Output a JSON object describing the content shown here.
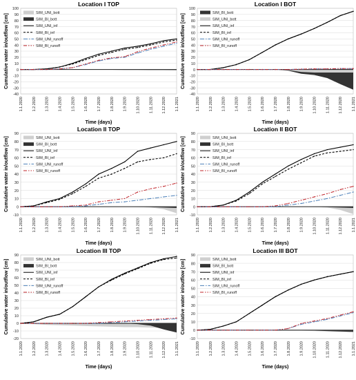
{
  "figure": {
    "y_axis_label": "Cumulative water in/outflow [cm]",
    "x_axis_label": "Time (days)",
    "series_colors": {
      "SIM_UNI_bott": "#cfcfcf",
      "SIM_BI_bott": "#333333",
      "SIM_UNI_inf": "#000000",
      "SIM_BI_inf": "#000000",
      "SIM_UNI_runoff": "#4a7fb8",
      "SIM_BI_runoff": "#c0242a"
    }
  },
  "chart_data": [
    {
      "type": "area",
      "title": "Location I TOP",
      "xlabel": "Time (days)",
      "ylabel": "Cumulative water in/outflow [cm]",
      "categories": [
        "1.1.2020",
        "1.2.2020",
        "1.3.2020",
        "1.4.2020",
        "1.5.2020",
        "1.6.2020",
        "1.7.2020",
        "1.8.2020",
        "1.9.2020",
        "1.10.2020",
        "1.11.2020",
        "1.12.2020",
        "1.1.2021"
      ],
      "ylim": [
        -40,
        100
      ],
      "yticks": [
        -40,
        -30,
        -20,
        -10,
        0,
        10,
        20,
        30,
        40,
        50,
        60,
        70,
        80,
        90,
        100
      ],
      "legend_position": "top-left",
      "series": [
        {
          "name": "SIM_UNI_bott",
          "values": [
            0,
            0,
            0,
            -0.2,
            -0.3,
            -0.4,
            -0.5,
            -0.5,
            -0.6,
            -0.6,
            -0.7,
            -0.8,
            -0.9
          ]
        },
        {
          "name": "SIM_BI_bott",
          "values": [
            0,
            0,
            0,
            -0.2,
            -0.3,
            -0.4,
            -0.5,
            -0.5,
            -0.6,
            -0.6,
            -0.7,
            -0.8,
            -0.9
          ]
        },
        {
          "name": "SIM_UNI_inf",
          "values": [
            0,
            0,
            1,
            4,
            10,
            18,
            25,
            30,
            35,
            38,
            42,
            47,
            50
          ]
        },
        {
          "name": "SIM_BI_inf",
          "values": [
            0,
            0,
            1,
            4,
            9,
            16,
            23,
            28,
            33,
            36,
            40,
            45,
            48
          ]
        },
        {
          "name": "SIM_UNI_runoff",
          "values": [
            0,
            0,
            0,
            1,
            3,
            8,
            14,
            18,
            20,
            27,
            33,
            38,
            43
          ]
        },
        {
          "name": "SIM_BI_runoff",
          "values": [
            0,
            0,
            0,
            1,
            3,
            9,
            15,
            19,
            21,
            29,
            35,
            40,
            45
          ]
        }
      ]
    },
    {
      "type": "area",
      "title": "Location I BOT",
      "xlabel": "Time (days)",
      "ylabel": "Cumulative water in/outflow [cm]",
      "categories": [
        "1.1.2020",
        "1.2.2020",
        "1.3.2020",
        "1.4.2020",
        "1.5.2020",
        "1.6.2020",
        "1.7.2020",
        "1.8.2020",
        "1.9.2020",
        "1.10.2020",
        "1.11.2020",
        "1.12.2020",
        "1.1.2021"
      ],
      "ylim": [
        -40,
        100
      ],
      "yticks": [
        -40,
        -30,
        -20,
        -10,
        0,
        10,
        20,
        30,
        40,
        50,
        60,
        70,
        80,
        90,
        100
      ],
      "legend_position": "top-left",
      "series": [
        {
          "name": "SIM_BI_bott",
          "values": [
            0,
            0,
            0,
            0,
            0,
            0,
            0,
            -2,
            -7,
            -9,
            -14,
            -24,
            -33
          ]
        },
        {
          "name": "SIM_UNI_bott",
          "values": [
            0,
            0,
            0,
            0,
            0,
            0,
            0,
            -1,
            -4,
            -5,
            -5,
            -5,
            -5
          ]
        },
        {
          "name": "SIM_UNI_inf",
          "values": [
            0,
            0,
            3,
            8,
            16,
            28,
            40,
            50,
            58,
            67,
            77,
            88,
            95
          ]
        },
        {
          "name": "SIM_BI_inf",
          "values": [
            0,
            0,
            3,
            8,
            16,
            28,
            40,
            50,
            58,
            67,
            77,
            88,
            95
          ]
        },
        {
          "name": "SIM_UNI_runoff",
          "values": [
            0,
            0,
            0,
            0,
            0,
            0,
            0,
            0,
            0.5,
            1,
            1,
            1.5,
            1.5
          ]
        },
        {
          "name": "SIM_BI_runoff",
          "values": [
            0,
            0,
            0,
            0,
            0,
            0,
            0,
            0,
            0.5,
            1,
            1,
            1.5,
            1.5
          ]
        }
      ]
    },
    {
      "type": "area",
      "title": "Location II TOP",
      "xlabel": "Time (days)",
      "ylabel": "Cumulative water in/outflow [cm]",
      "categories": [
        "1.1.2020",
        "1.2.2020",
        "1.3.2020",
        "1.4.2020",
        "1.5.2020",
        "1.6.2020",
        "1.7.2020",
        "1.8.2020",
        "1.9.2020",
        "1.10.2020",
        "1.11.2020",
        "1.12.2020",
        "1.1.2021"
      ],
      "ylim": [
        -10,
        90
      ],
      "yticks": [
        -10,
        0,
        10,
        20,
        30,
        40,
        50,
        60,
        70,
        80,
        90
      ],
      "legend_position": "top-left",
      "series": [
        {
          "name": "SIM_UNI_bott",
          "values": [
            0,
            0,
            0,
            0,
            0,
            0,
            0,
            0,
            0,
            -0.5,
            -1,
            -3,
            -8
          ]
        },
        {
          "name": "SIM_BI_bott",
          "values": [
            0,
            0,
            0,
            0,
            0,
            0,
            0,
            0,
            0,
            0,
            -0.5,
            -1,
            -1.5
          ]
        },
        {
          "name": "SIM_UNI_inf",
          "values": [
            0,
            1,
            6,
            10,
            18,
            28,
            40,
            47,
            55,
            68,
            72,
            76,
            80
          ]
        },
        {
          "name": "SIM_BI_inf",
          "values": [
            0,
            1,
            5,
            9,
            16,
            25,
            35,
            40,
            47,
            55,
            58,
            60,
            65
          ]
        },
        {
          "name": "SIM_UNI_runoff",
          "values": [
            0,
            0,
            0,
            0,
            0,
            1,
            3,
            5,
            6,
            8,
            10,
            12,
            14
          ]
        },
        {
          "name": "SIM_BI_runoff",
          "values": [
            0,
            0,
            0,
            0,
            1,
            2,
            6,
            8,
            10,
            18,
            22,
            25,
            29
          ]
        }
      ]
    },
    {
      "type": "area",
      "title": "Location II BOT",
      "xlabel": "Time (days)",
      "ylabel": "Cumulative water in/outflow [cm]",
      "categories": [
        "1.1.2020",
        "1.2.2020",
        "1.3.2020",
        "1.4.2020",
        "1.5.2020",
        "1.6.2020",
        "1.7.2020",
        "1.8.2020",
        "1.9.2020",
        "1.10.2020",
        "1.11.2020",
        "1.12.2020",
        "1.1.2021"
      ],
      "ylim": [
        -10,
        90
      ],
      "yticks": [
        -10,
        0,
        10,
        20,
        30,
        40,
        50,
        60,
        70,
        80,
        90
      ],
      "legend_position": "top-left",
      "series": [
        {
          "name": "SIM_UNI_bott",
          "values": [
            0,
            0,
            0,
            0,
            0,
            0,
            0,
            0,
            0,
            -0.5,
            -1,
            -4,
            -9
          ]
        },
        {
          "name": "SIM_BI_bott",
          "values": [
            0,
            0,
            0,
            0,
            0,
            0,
            0,
            0,
            0,
            0,
            -0.5,
            -1,
            -1.5
          ]
        },
        {
          "name": "SIM_UNI_inf",
          "values": [
            0,
            0,
            2,
            8,
            18,
            30,
            40,
            50,
            58,
            65,
            70,
            73,
            76
          ]
        },
        {
          "name": "SIM_BI_inf",
          "values": [
            0,
            0,
            2,
            7,
            16,
            28,
            37,
            46,
            54,
            62,
            66,
            68,
            70
          ]
        },
        {
          "name": "SIM_UNI_runoff",
          "values": [
            0,
            0,
            0,
            0,
            0,
            0,
            0,
            2,
            4,
            7,
            10,
            14,
            18
          ]
        },
        {
          "name": "SIM_BI_runoff",
          "values": [
            0,
            0,
            0,
            0,
            0,
            0,
            1,
            4,
            8,
            12,
            16,
            21,
            25
          ]
        }
      ]
    },
    {
      "type": "area",
      "title": "Location III TOP",
      "xlabel": "Time (days)",
      "ylabel": "Cumulative water in/outflow [cm]",
      "categories": [
        "1.1.2020",
        "1.2.2020",
        "1.3.2020",
        "1.4.2020",
        "1.5.2020",
        "1.6.2020",
        "1.7.2020",
        "1.8.2020",
        "1.9.2020",
        "1.10.2020",
        "1.11.2020",
        "1.12.2020",
        "1.1.2021"
      ],
      "ylim": [
        -20,
        90
      ],
      "yticks": [
        -20,
        -10,
        0,
        10,
        20,
        30,
        40,
        50,
        60,
        70,
        80,
        90
      ],
      "legend_position": "top-left",
      "series": [
        {
          "name": "SIM_UNI_bott",
          "values": [
            0,
            -1,
            -2,
            -2.5,
            -3,
            -3.5,
            -4,
            -4.5,
            -5,
            -5,
            -5.5,
            -6,
            -6
          ]
        },
        {
          "name": "SIM_BI_bott",
          "values": [
            0,
            0,
            0,
            0,
            0,
            0,
            0,
            0,
            0,
            -1,
            -3,
            -8,
            -12
          ]
        },
        {
          "name": "SIM_UNI_inf",
          "values": [
            0,
            2,
            8,
            12,
            22,
            35,
            48,
            58,
            66,
            73,
            80,
            85,
            88
          ]
        },
        {
          "name": "SIM_BI_inf",
          "values": [
            0,
            2,
            8,
            12,
            22,
            35,
            48,
            57,
            65,
            72,
            79,
            84,
            86
          ]
        },
        {
          "name": "SIM_UNI_runoff",
          "values": [
            0,
            0,
            0,
            0,
            0,
            0,
            0,
            1,
            2,
            3,
            4,
            5,
            6
          ]
        },
        {
          "name": "SIM_BI_runoff",
          "values": [
            0,
            0,
            0,
            0,
            0,
            0,
            1,
            2,
            3,
            4,
            5,
            6,
            7
          ]
        }
      ]
    },
    {
      "type": "area",
      "title": "Location III BOT",
      "xlabel": "Time (days)",
      "ylabel": "Cumulative water in/outflow [cm]",
      "categories": [
        "1.1.2020",
        "1.2.2020",
        "1.3.2020",
        "1.4.2020",
        "1.5.2020",
        "1.6.2020",
        "1.7.2020",
        "1.8.2020",
        "1.9.2020",
        "1.10.2020",
        "1.11.2020",
        "1.12.2020",
        "1.1.2021"
      ],
      "ylim": [
        -10,
        90
      ],
      "yticks": [
        -10,
        0,
        10,
        20,
        30,
        40,
        50,
        60,
        70,
        80,
        90
      ],
      "legend_position": "top-left",
      "series": [
        {
          "name": "SIM_UNI_bott",
          "values": [
            0,
            0,
            0,
            0,
            0,
            0,
            0,
            0,
            -0.5,
            -1,
            -1.5,
            -2,
            -2.5
          ]
        },
        {
          "name": "SIM_BI_bott",
          "values": [
            0,
            0,
            0,
            0,
            0,
            0,
            0,
            0,
            0,
            -0.5,
            -1,
            -1.5,
            -2
          ]
        },
        {
          "name": "SIM_UNI_inf",
          "values": [
            0,
            1,
            5,
            10,
            20,
            30,
            40,
            48,
            55,
            60,
            64,
            67,
            70
          ]
        },
        {
          "name": "SIM_BI_inf",
          "values": [
            0,
            1,
            5,
            10,
            20,
            30,
            40,
            48,
            55,
            60,
            64,
            67,
            70
          ]
        },
        {
          "name": "SIM_UNI_runoff",
          "values": [
            0,
            0,
            0,
            0,
            0,
            0,
            0,
            2,
            7,
            10,
            13,
            17,
            21
          ]
        },
        {
          "name": "SIM_BI_runoff",
          "values": [
            0,
            0,
            0,
            0,
            0,
            0,
            0,
            2,
            8,
            11,
            14,
            18,
            22
          ]
        }
      ]
    }
  ]
}
